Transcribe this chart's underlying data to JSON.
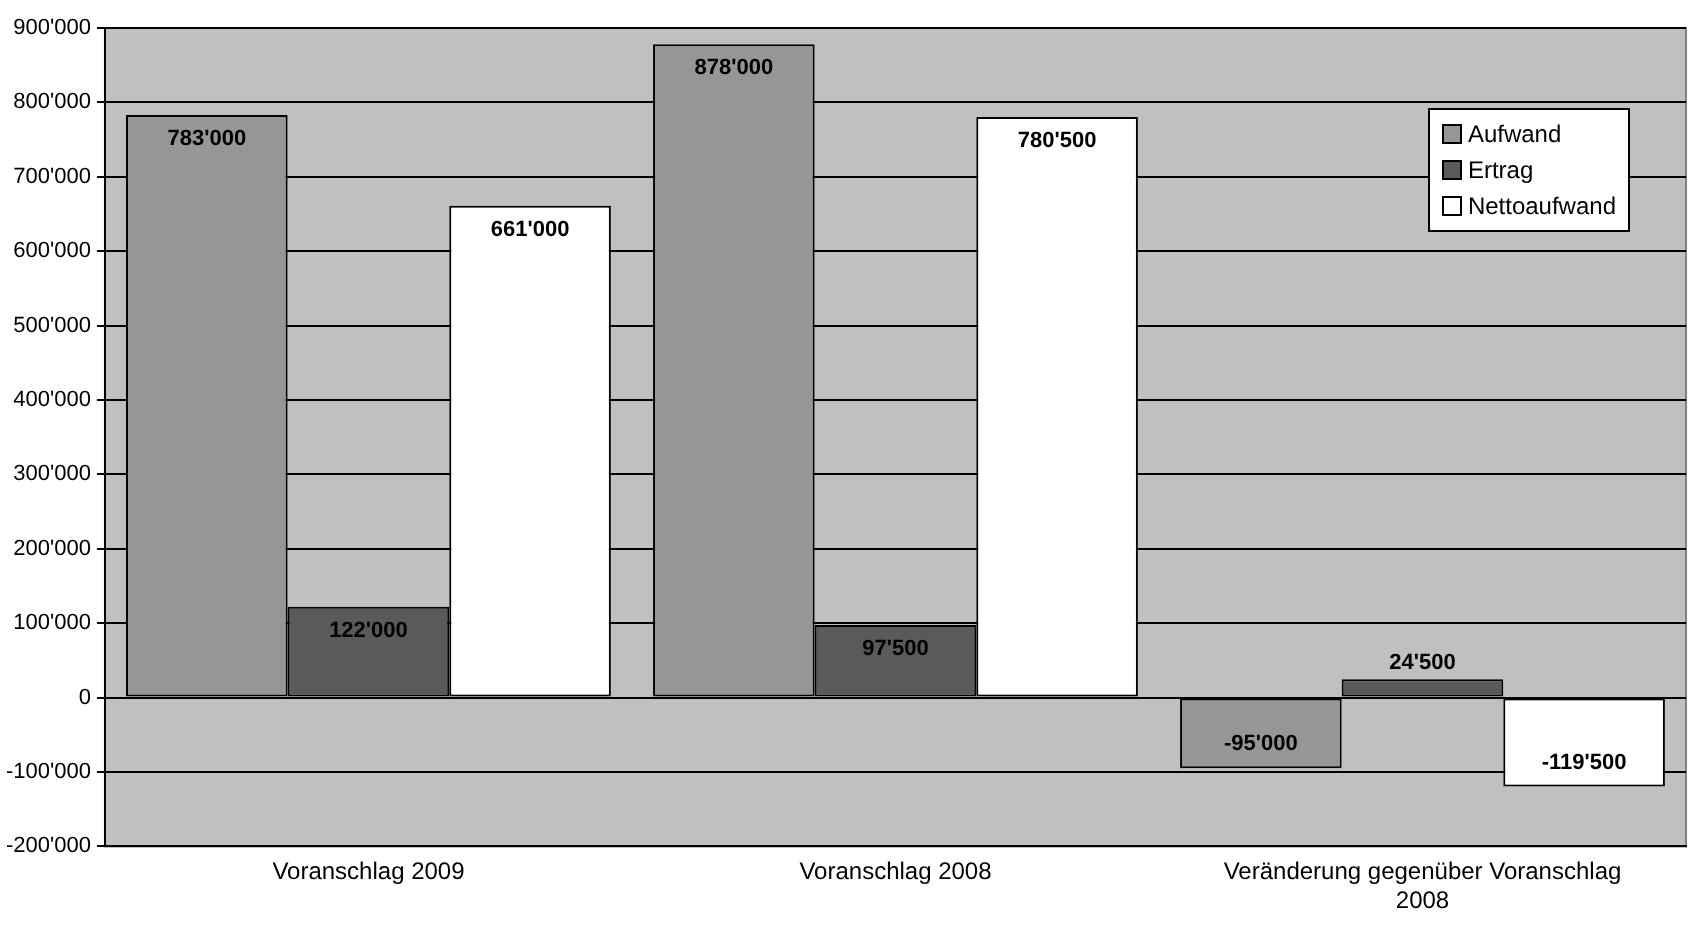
{
  "chart_data": {
    "type": "bar",
    "categories": [
      "Voranschlag 2009",
      "Voranschlag 2008",
      "Veränderung gegenüber Voranschlag 2008"
    ],
    "series": [
      {
        "name": "Aufwand",
        "color": "#969696",
        "values": [
          783000,
          878000,
          -95000
        ],
        "value_labels": [
          "783'000",
          "878'000",
          "-95'000"
        ]
      },
      {
        "name": "Ertrag",
        "color": "#5a5a5a",
        "values": [
          122000,
          97500,
          24500
        ],
        "value_labels": [
          "122'000",
          "97'500",
          "24'500"
        ]
      },
      {
        "name": "Nettoaufwand",
        "color": "#ffffff",
        "values": [
          661000,
          780500,
          -119500
        ],
        "value_labels": [
          "661'000",
          "780'500",
          "-119'500"
        ]
      }
    ],
    "ylim": [
      -200000,
      900000
    ],
    "yticks": [
      {
        "value": -200000,
        "label": "-200'000"
      },
      {
        "value": -100000,
        "label": "-100'000"
      },
      {
        "value": 0,
        "label": "0"
      },
      {
        "value": 100000,
        "label": "100'000"
      },
      {
        "value": 200000,
        "label": "200'000"
      },
      {
        "value": 300000,
        "label": "300'000"
      },
      {
        "value": 400000,
        "label": "400'000"
      },
      {
        "value": 500000,
        "label": "500'000"
      },
      {
        "value": 600000,
        "label": "600'000"
      },
      {
        "value": 700000,
        "label": "700'000"
      },
      {
        "value": 800000,
        "label": "800'000"
      },
      {
        "value": 900000,
        "label": "900'000"
      }
    ],
    "grid": "y",
    "legend": "top right"
  }
}
